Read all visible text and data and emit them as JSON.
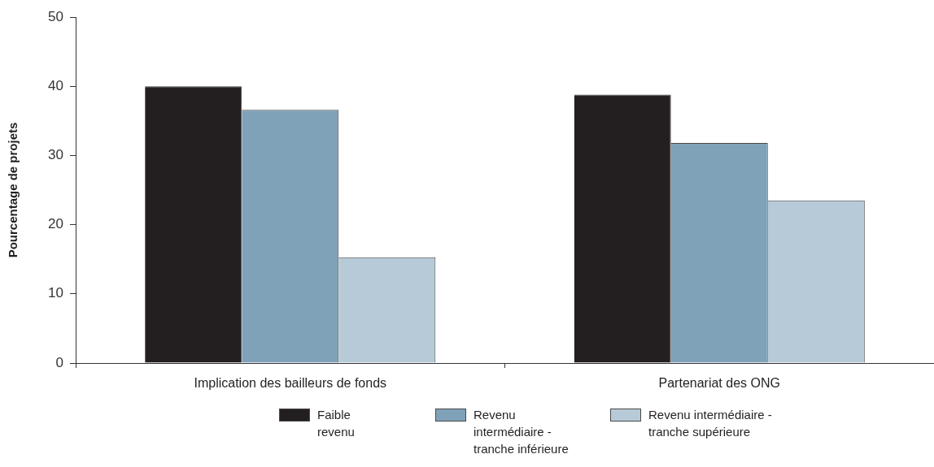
{
  "chart_data": {
    "type": "bar",
    "ylabel": "Pourcentage de projets",
    "categories": [
      "Implication des bailleurs de fonds",
      "Partenariat des ONG"
    ],
    "series": [
      {
        "name": "Faible revenu",
        "color": "#231f20",
        "values": [
          40.0,
          38.8
        ]
      },
      {
        "name": "Revenu intermédiaire - tranche inférieure",
        "color": "#7fa2b8",
        "values": [
          36.6,
          31.8
        ]
      },
      {
        "name": "Revenu intermédiaire - tranche supérieure",
        "color": "#b7cad8",
        "values": [
          15.3,
          23.5
        ]
      }
    ],
    "ylim": [
      0,
      50
    ],
    "yticks": [
      0,
      10,
      20,
      30,
      40,
      50
    ],
    "legend": "bottom"
  }
}
